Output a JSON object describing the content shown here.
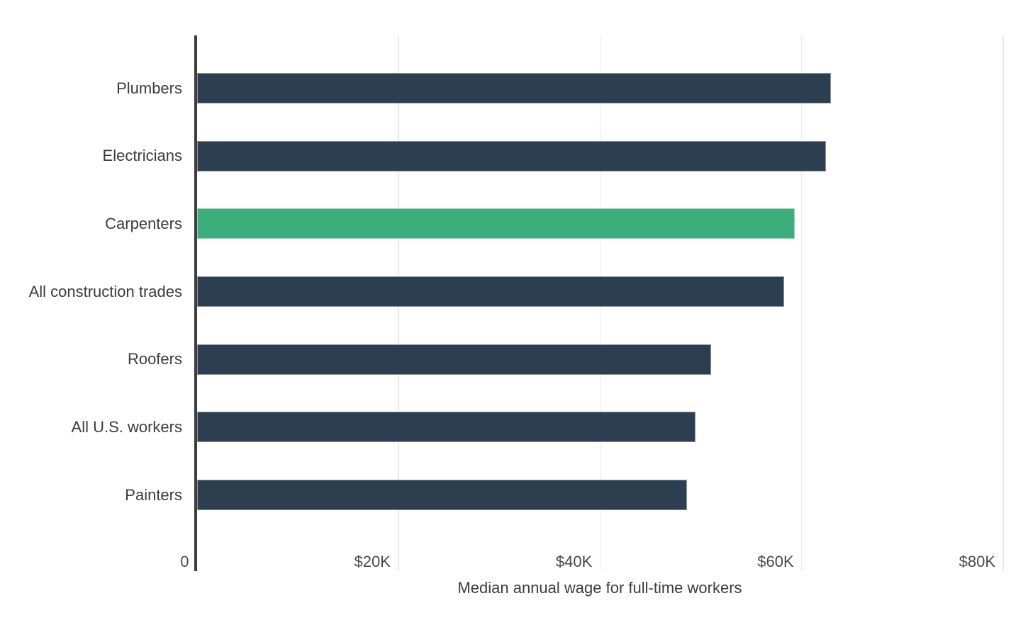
{
  "chart_data": {
    "type": "bar",
    "orientation": "horizontal",
    "title": "",
    "xlabel": "Median annual wage for full-time workers",
    "ylabel": "",
    "categories": [
      "Plumbers",
      "Electricians",
      "Carpenters",
      "All construction trades",
      "Roofers",
      "All U.S. workers",
      "Painters"
    ],
    "values": [
      62900,
      62400,
      59300,
      58300,
      51000,
      49500,
      48600
    ],
    "highlight": {
      "category": "Carpenters",
      "index": 2,
      "color": "#3cae7c"
    },
    "bar_color": "#2d3e50",
    "axis_line_color": "#3d3d3d",
    "gridline_color": "#e9e9e9",
    "label_color": "#3c3c3c",
    "tick_label_color": "#4a4a4a",
    "xlim": [
      0,
      80000
    ],
    "x_ticks": [
      {
        "value": 0,
        "label": "0"
      },
      {
        "value": 20000,
        "label": "$20K"
      },
      {
        "value": 40000,
        "label": "$40K"
      },
      {
        "value": 60000,
        "label": "$60K"
      },
      {
        "value": 80000,
        "label": "$80K"
      }
    ],
    "grid": true,
    "legend": false
  }
}
